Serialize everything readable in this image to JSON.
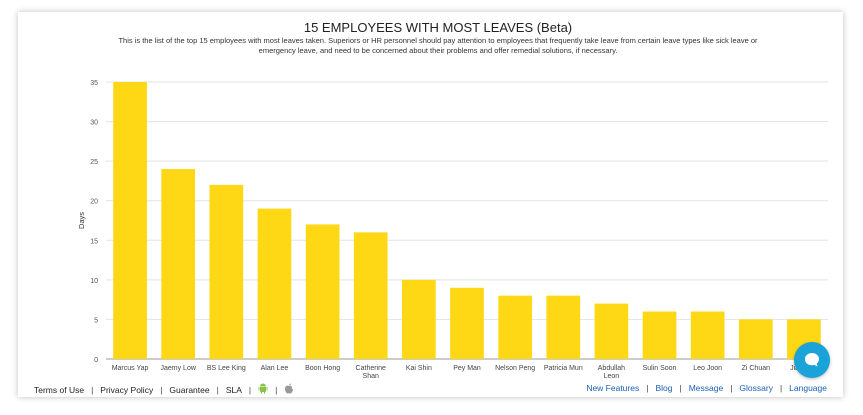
{
  "chart_data": {
    "type": "bar",
    "title": "15 EMPLOYEES WITH MOST LEAVES (Beta)",
    "subtitle": "This is the list of the top 15 employees with most leaves taken. Superiors or HR personnel should pay attention to employees that frequently take leave from certain leave types like sick leave or emergency leave, and need to be concerned about their problems and offer remedial solutions, if necessary.",
    "ylabel": "Days",
    "xlabel": "",
    "ylim": [
      0,
      35
    ],
    "yticks": [
      0,
      5,
      10,
      15,
      20,
      25,
      30,
      35
    ],
    "grid": true,
    "bar_color": "#FFD815",
    "categories": [
      "Marcus Yap",
      "Jaemy Low",
      "BS Lee King",
      "Alan Lee",
      "Boon Hong",
      "Catherine Shan",
      "Kai Shin",
      "Pey Man",
      "Nelson Peng",
      "Patricia Mun",
      "Abdullah Leon",
      "Sulin Soon",
      "Leo Joon",
      "Zi Chuan",
      "Jia Hong"
    ],
    "values": [
      35,
      24,
      22,
      19,
      17,
      16,
      10,
      9,
      8,
      8,
      7,
      6,
      6,
      5,
      5
    ]
  },
  "footer": {
    "left_links": [
      "Terms of Use",
      "Privacy Policy",
      "Guarantee",
      "SLA"
    ],
    "right_links": [
      "New Features",
      "Blog",
      "Message",
      "Glossary",
      "Language"
    ],
    "separator": "|"
  },
  "icons": {
    "android": "android-icon",
    "apple": "apple-icon",
    "chat": "chat-icon"
  },
  "colors": {
    "android": "#8BC34A",
    "apple": "#999999",
    "chat": "#19A3D8",
    "link": "#1A5FB4"
  }
}
